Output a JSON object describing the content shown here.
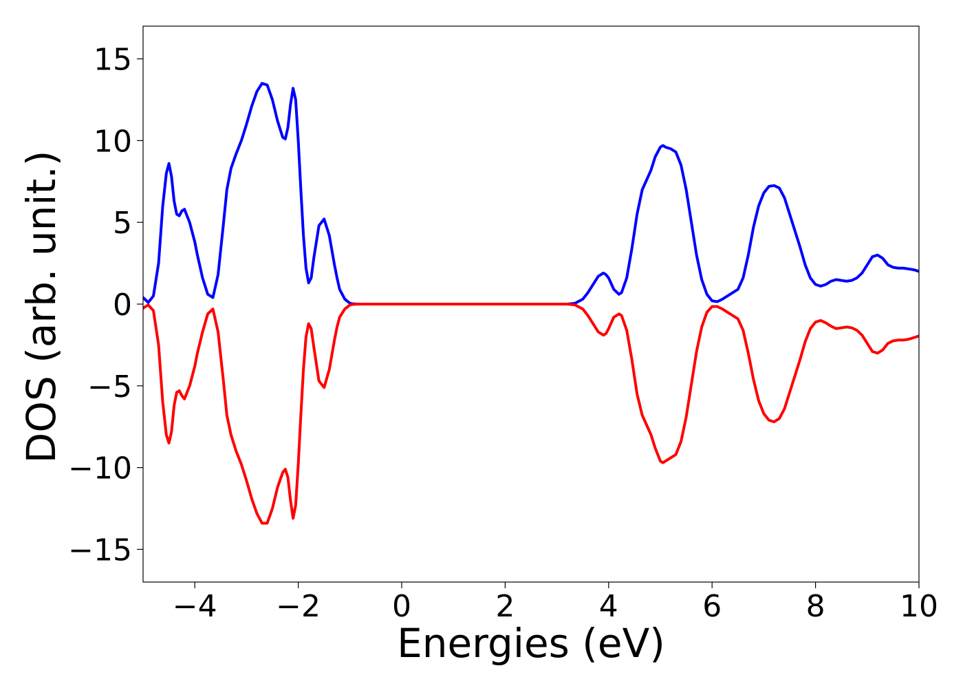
{
  "chart_data": {
    "type": "line",
    "title": "",
    "xlabel": "Energies (eV)",
    "ylabel": "DOS (arb. unit.)",
    "xlim": [
      -5,
      10
    ],
    "ylim": [
      -17,
      17
    ],
    "x_ticks": [
      -4,
      -2,
      0,
      2,
      4,
      6,
      8,
      10
    ],
    "x_tick_labels": [
      "−4",
      "−2",
      "0",
      "2",
      "4",
      "6",
      "8",
      "10"
    ],
    "y_ticks": [
      15,
      10,
      5,
      0,
      -5,
      -10,
      -15
    ],
    "y_tick_labels": [
      "15",
      "10",
      "5",
      "0",
      "−5",
      "−10",
      "−15"
    ],
    "grid": false,
    "legend": "none",
    "series": [
      {
        "color": "#0000ff",
        "x": [
          -5.0,
          -4.9,
          -4.8,
          -4.7,
          -4.62,
          -4.55,
          -4.5,
          -4.45,
          -4.4,
          -4.35,
          -4.3,
          -4.25,
          -4.2,
          -4.1,
          -4.0,
          -3.95,
          -3.85,
          -3.75,
          -3.65,
          -3.55,
          -3.45,
          -3.38,
          -3.3,
          -3.2,
          -3.1,
          -3.0,
          -2.9,
          -2.8,
          -2.7,
          -2.6,
          -2.5,
          -2.4,
          -2.3,
          -2.25,
          -2.2,
          -2.15,
          -2.1,
          -2.05,
          -2.0,
          -1.95,
          -1.9,
          -1.85,
          -1.8,
          -1.75,
          -1.7,
          -1.6,
          -1.5,
          -1.4,
          -1.3,
          -1.25,
          -1.2,
          -1.1,
          -1.0,
          -0.95,
          -0.9,
          -0.8,
          -0.7,
          -0.6,
          -0.5,
          -0.4,
          0.0,
          1.0,
          2.0,
          3.0,
          3.2,
          3.35,
          3.5,
          3.6,
          3.7,
          3.8,
          3.9,
          3.95,
          4.0,
          4.1,
          4.2,
          4.25,
          4.35,
          4.45,
          4.55,
          4.65,
          4.75,
          4.82,
          4.9,
          5.0,
          5.05,
          5.1,
          5.2,
          5.3,
          5.4,
          5.5,
          5.6,
          5.7,
          5.8,
          5.9,
          6.0,
          6.1,
          6.2,
          6.3,
          6.4,
          6.5,
          6.6,
          6.7,
          6.8,
          6.9,
          7.0,
          7.1,
          7.2,
          7.3,
          7.4,
          7.5,
          7.6,
          7.7,
          7.8,
          7.9,
          8.0,
          8.1,
          8.2,
          8.3,
          8.4,
          8.5,
          8.6,
          8.7,
          8.8,
          8.9,
          9.0,
          9.1,
          9.2,
          9.3,
          9.4,
          9.5,
          9.6,
          9.7,
          9.8,
          9.9,
          10.0
        ],
        "y": [
          0.4,
          0.1,
          0.5,
          2.5,
          6.0,
          8.0,
          8.6,
          7.8,
          6.3,
          5.5,
          5.4,
          5.7,
          5.8,
          5.0,
          3.8,
          3.0,
          1.6,
          0.6,
          0.4,
          1.8,
          4.8,
          7.0,
          8.3,
          9.2,
          10.0,
          11.0,
          12.1,
          13.0,
          13.5,
          13.4,
          12.5,
          11.2,
          10.2,
          10.1,
          10.8,
          12.2,
          13.2,
          12.5,
          10.0,
          7.0,
          4.2,
          2.2,
          1.3,
          1.6,
          2.8,
          4.8,
          5.2,
          4.2,
          2.4,
          1.6,
          0.9,
          0.3,
          0.05,
          0.02,
          0.01,
          0.0,
          0.0,
          0.0,
          0.0,
          0.0,
          0.0,
          0.0,
          0.0,
          0.0,
          0.0,
          0.05,
          0.3,
          0.7,
          1.2,
          1.7,
          1.9,
          1.8,
          1.6,
          0.9,
          0.6,
          0.7,
          1.6,
          3.4,
          5.5,
          7.0,
          7.7,
          8.2,
          9.0,
          9.6,
          9.7,
          9.6,
          9.5,
          9.3,
          8.5,
          7.0,
          5.0,
          3.0,
          1.5,
          0.6,
          0.2,
          0.15,
          0.3,
          0.5,
          0.7,
          0.9,
          1.6,
          3.0,
          4.7,
          6.0,
          6.8,
          7.2,
          7.25,
          7.1,
          6.5,
          5.5,
          4.5,
          3.5,
          2.4,
          1.6,
          1.2,
          1.1,
          1.2,
          1.4,
          1.5,
          1.45,
          1.4,
          1.45,
          1.6,
          1.9,
          2.4,
          2.9,
          3.0,
          2.8,
          2.4,
          2.25,
          2.2,
          2.2,
          2.15,
          2.1,
          2.0
        ]
      },
      {
        "color": "#ff0000",
        "x": [
          -5.0,
          -4.9,
          -4.8,
          -4.7,
          -4.62,
          -4.55,
          -4.5,
          -4.45,
          -4.4,
          -4.35,
          -4.3,
          -4.25,
          -4.2,
          -4.1,
          -4.0,
          -3.95,
          -3.85,
          -3.75,
          -3.65,
          -3.55,
          -3.45,
          -3.38,
          -3.3,
          -3.2,
          -3.1,
          -3.0,
          -2.9,
          -2.8,
          -2.7,
          -2.6,
          -2.5,
          -2.4,
          -2.3,
          -2.25,
          -2.2,
          -2.15,
          -2.1,
          -2.05,
          -2.0,
          -1.95,
          -1.9,
          -1.85,
          -1.8,
          -1.75,
          -1.7,
          -1.6,
          -1.5,
          -1.4,
          -1.3,
          -1.25,
          -1.2,
          -1.1,
          -1.0,
          -0.95,
          -0.9,
          -0.8,
          -0.7,
          -0.6,
          -0.5,
          -0.4,
          0.0,
          1.0,
          2.0,
          3.0,
          3.2,
          3.35,
          3.5,
          3.6,
          3.7,
          3.8,
          3.9,
          3.95,
          4.0,
          4.1,
          4.2,
          4.25,
          4.35,
          4.45,
          4.55,
          4.65,
          4.75,
          4.82,
          4.9,
          5.0,
          5.05,
          5.1,
          5.2,
          5.3,
          5.4,
          5.5,
          5.6,
          5.7,
          5.8,
          5.9,
          6.0,
          6.1,
          6.2,
          6.3,
          6.4,
          6.5,
          6.6,
          6.7,
          6.8,
          6.9,
          7.0,
          7.1,
          7.2,
          7.3,
          7.4,
          7.5,
          7.6,
          7.7,
          7.8,
          7.9,
          8.0,
          8.1,
          8.2,
          8.3,
          8.4,
          8.5,
          8.6,
          8.7,
          8.8,
          8.9,
          9.0,
          9.1,
          9.2,
          9.3,
          9.4,
          9.5,
          9.6,
          9.7,
          9.8,
          9.9,
          10.0
        ],
        "y": [
          -0.25,
          -0.05,
          -0.4,
          -2.5,
          -6.0,
          -8.0,
          -8.5,
          -7.8,
          -6.2,
          -5.4,
          -5.3,
          -5.6,
          -5.8,
          -5.0,
          -3.8,
          -3.0,
          -1.7,
          -0.6,
          -0.3,
          -1.7,
          -4.6,
          -6.8,
          -8.0,
          -9.0,
          -9.8,
          -10.8,
          -11.9,
          -12.8,
          -13.4,
          -13.4,
          -12.5,
          -11.2,
          -10.3,
          -10.1,
          -10.6,
          -12.0,
          -13.1,
          -12.3,
          -9.8,
          -6.8,
          -4.0,
          -2.0,
          -1.2,
          -1.5,
          -2.6,
          -4.7,
          -5.1,
          -4.0,
          -2.2,
          -1.4,
          -0.8,
          -0.3,
          -0.05,
          -0.02,
          -0.01,
          0.0,
          0.0,
          0.0,
          0.0,
          0.0,
          0.0,
          0.0,
          0.0,
          0.0,
          0.0,
          -0.05,
          -0.3,
          -0.7,
          -1.2,
          -1.7,
          -1.9,
          -1.8,
          -1.5,
          -0.8,
          -0.6,
          -0.7,
          -1.6,
          -3.4,
          -5.5,
          -6.8,
          -7.5,
          -8.0,
          -8.8,
          -9.6,
          -9.7,
          -9.6,
          -9.4,
          -9.2,
          -8.4,
          -6.9,
          -4.9,
          -2.9,
          -1.4,
          -0.5,
          -0.15,
          -0.15,
          -0.3,
          -0.5,
          -0.7,
          -0.9,
          -1.6,
          -3.0,
          -4.6,
          -5.9,
          -6.7,
          -7.1,
          -7.2,
          -7.0,
          -6.4,
          -5.4,
          -4.4,
          -3.4,
          -2.3,
          -1.5,
          -1.1,
          -1.0,
          -1.15,
          -1.35,
          -1.5,
          -1.45,
          -1.4,
          -1.45,
          -1.6,
          -1.9,
          -2.4,
          -2.9,
          -3.0,
          -2.8,
          -2.4,
          -2.25,
          -2.2,
          -2.2,
          -2.15,
          -2.05,
          -1.95
        ]
      }
    ]
  }
}
